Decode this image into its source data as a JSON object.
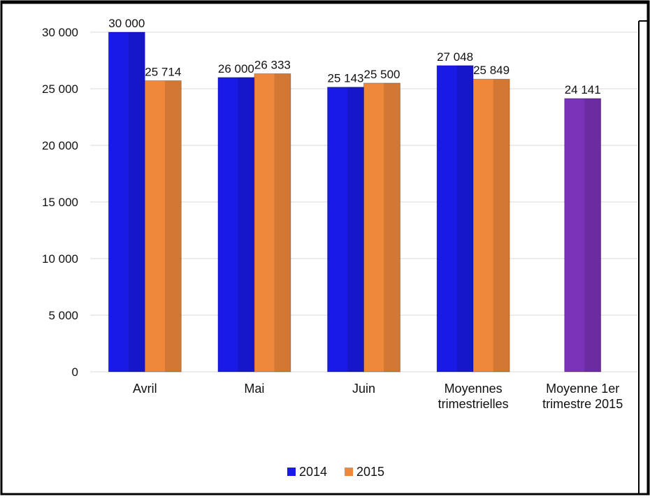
{
  "chart_data": {
    "type": "bar",
    "title": "",
    "xlabel": "",
    "ylabel": "",
    "ylim": [
      0,
      30000
    ],
    "yticks": [
      0,
      5000,
      10000,
      15000,
      20000,
      25000,
      30000
    ],
    "ytick_labels": [
      "0",
      "5 000",
      "10 000",
      "15 000",
      "20 000",
      "25 000",
      "30 000"
    ],
    "categories": [
      [
        "Avril"
      ],
      [
        "Mai"
      ],
      [
        "Juin"
      ],
      [
        "Moyennes",
        "trimestrielles"
      ],
      [
        "Moyenne 1er",
        "trimestre 2015"
      ]
    ],
    "series": [
      {
        "name": "2014",
        "color": "#1a1ae6",
        "values": [
          30000,
          26000,
          25143,
          27048,
          null
        ],
        "labels": [
          "30 000",
          "26 000",
          "25 143",
          "27 048",
          ""
        ]
      },
      {
        "name": "2015",
        "color": "#f0883c",
        "values": [
          25714,
          26333,
          25500,
          25849,
          null
        ],
        "labels": [
          "25 714",
          "26 333",
          "25 500",
          "25 849",
          ""
        ]
      },
      {
        "name": "",
        "color": "#7a33b8",
        "values": [
          null,
          null,
          null,
          null,
          24141
        ],
        "labels": [
          "",
          "",
          "",
          "",
          "24 141"
        ]
      }
    ],
    "legend": {
      "position": "bottom",
      "entries": [
        "2014",
        "2015"
      ]
    },
    "grid": true
  }
}
